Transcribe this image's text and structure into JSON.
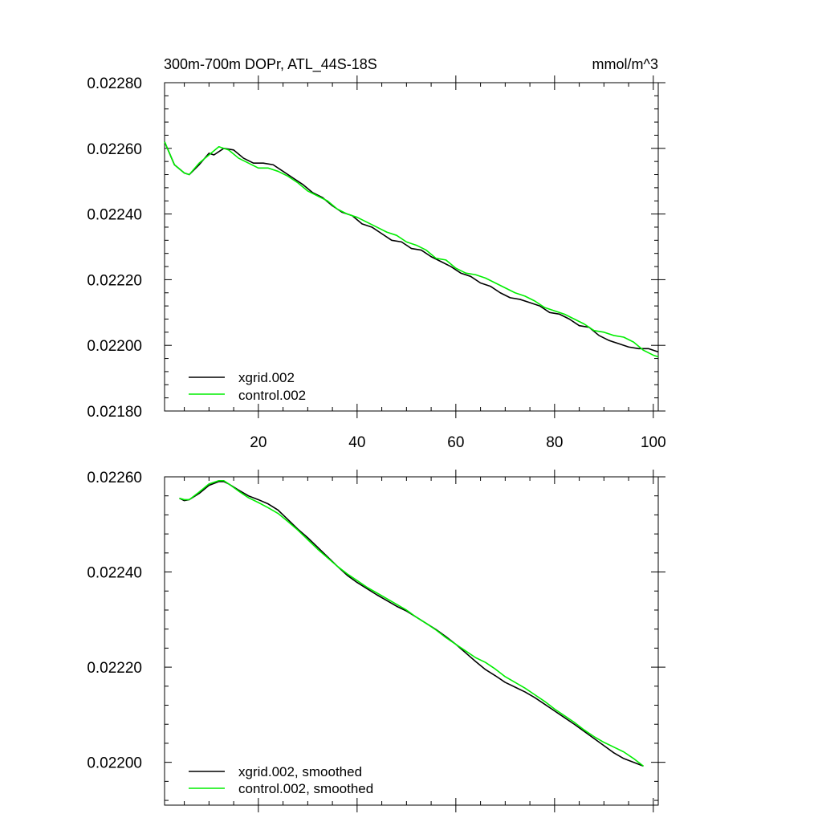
{
  "chart_data": [
    {
      "type": "line",
      "title": "300m-700m DOPr, ATL_44S-18S",
      "units": "mmol/m^3",
      "xlabel": "",
      "ylabel": "",
      "xlim": [
        1,
        101
      ],
      "ylim": [
        0.0218,
        0.0228
      ],
      "x_ticks": [
        20,
        40,
        60,
        80,
        100
      ],
      "y_ticks": [
        0.0218,
        0.022,
        0.0222,
        0.0224,
        0.0226,
        0.0228
      ],
      "y_tick_labels": [
        "0.02180",
        "0.02200",
        "0.02220",
        "0.02240",
        "0.02260",
        "0.02280"
      ],
      "grid": false,
      "legend_position": "bottom-left",
      "series": [
        {
          "name": "xgrid.002",
          "color": "#000000",
          "x": [
            1,
            3,
            5,
            6,
            8,
            10,
            11,
            13,
            15,
            17,
            19,
            21,
            23,
            25,
            27,
            29,
            31,
            33,
            35,
            37,
            39,
            41,
            43,
            45,
            47,
            49,
            51,
            53,
            55,
            57,
            59,
            61,
            63,
            65,
            67,
            69,
            71,
            73,
            75,
            77,
            79,
            81,
            83,
            85,
            87,
            89,
            91,
            93,
            95,
            97,
            99,
            101
          ],
          "values": [
            0.02262,
            0.02255,
            0.022525,
            0.02252,
            0.02255,
            0.022585,
            0.02258,
            0.0226,
            0.022595,
            0.02257,
            0.022555,
            0.022555,
            0.02255,
            0.02253,
            0.02251,
            0.02249,
            0.022465,
            0.02245,
            0.022425,
            0.022405,
            0.022395,
            0.02237,
            0.02236,
            0.02234,
            0.02232,
            0.022315,
            0.022295,
            0.02229,
            0.02227,
            0.022255,
            0.02224,
            0.02222,
            0.02221,
            0.02219,
            0.02218,
            0.02216,
            0.022145,
            0.02214,
            0.02213,
            0.02212,
            0.0221,
            0.022095,
            0.02208,
            0.02206,
            0.022055,
            0.02203,
            0.022015,
            0.022005,
            0.021995,
            0.02199,
            0.02199,
            0.02198
          ]
        },
        {
          "name": "control.002",
          "color": "#00ee00",
          "x": [
            1,
            3,
            5,
            6,
            8,
            10,
            12,
            14,
            16,
            18,
            20,
            22,
            24,
            26,
            28,
            30,
            32,
            34,
            36,
            38,
            40,
            42,
            44,
            46,
            48,
            50,
            52,
            54,
            56,
            58,
            60,
            62,
            64,
            66,
            68,
            70,
            72,
            74,
            76,
            78,
            80,
            82,
            84,
            86,
            88,
            90,
            92,
            94,
            96,
            98,
            100,
            101
          ],
          "values": [
            0.02262,
            0.02255,
            0.022525,
            0.02252,
            0.022555,
            0.02258,
            0.022605,
            0.022595,
            0.02257,
            0.022555,
            0.02254,
            0.02254,
            0.02253,
            0.022515,
            0.022495,
            0.02247,
            0.022455,
            0.02244,
            0.022415,
            0.0224,
            0.02239,
            0.022375,
            0.02236,
            0.022345,
            0.022335,
            0.022315,
            0.022305,
            0.02229,
            0.022265,
            0.02226,
            0.022235,
            0.02222,
            0.022215,
            0.022205,
            0.02219,
            0.022175,
            0.02216,
            0.02215,
            0.022135,
            0.022115,
            0.022105,
            0.022095,
            0.02208,
            0.022065,
            0.022045,
            0.02204,
            0.02203,
            0.022025,
            0.02201,
            0.021985,
            0.02197,
            0.021965
          ]
        }
      ],
      "legend": [
        {
          "label": "xgrid.002",
          "color": "#000000"
        },
        {
          "label": "control.002",
          "color": "#00ee00"
        }
      ]
    },
    {
      "type": "line",
      "title": "",
      "xlabel": "",
      "ylabel": "",
      "xlim": [
        1,
        101
      ],
      "ylim": [
        0.02191,
        0.0226
      ],
      "x_ticks": [
        20,
        40,
        60,
        80,
        100
      ],
      "y_ticks": [
        0.022,
        0.0222,
        0.0224,
        0.0226
      ],
      "y_tick_labels": [
        "0.02200",
        "0.02220",
        "0.02240",
        "0.02260"
      ],
      "grid": false,
      "legend_position": "bottom-left",
      "series": [
        {
          "name": "xgrid.002, smoothed",
          "color": "#000000",
          "x": [
            4,
            5,
            6,
            8,
            10,
            12,
            13,
            14,
            16,
            18,
            20,
            22,
            24,
            26,
            28,
            30,
            32,
            34,
            36,
            38,
            40,
            42,
            44,
            46,
            48,
            50,
            52,
            54,
            56,
            58,
            60,
            62,
            64,
            66,
            68,
            70,
            72,
            74,
            76,
            78,
            80,
            82,
            84,
            86,
            88,
            90,
            92,
            94,
            96,
            98
          ],
          "values": [
            0.022555,
            0.02255,
            0.022552,
            0.022565,
            0.022582,
            0.02259,
            0.02259,
            0.022585,
            0.022572,
            0.02256,
            0.022552,
            0.022543,
            0.02253,
            0.02251,
            0.02249,
            0.022472,
            0.022452,
            0.022432,
            0.022412,
            0.022393,
            0.022378,
            0.022365,
            0.022352,
            0.02234,
            0.022328,
            0.022318,
            0.022305,
            0.022292,
            0.022279,
            0.022264,
            0.022248,
            0.02223,
            0.022212,
            0.022195,
            0.022182,
            0.022168,
            0.022158,
            0.022148,
            0.022136,
            0.022122,
            0.022108,
            0.022094,
            0.02208,
            0.022065,
            0.02205,
            0.022035,
            0.02202,
            0.022008,
            0.022,
            0.021992
          ]
        },
        {
          "name": "control.002, smoothed",
          "color": "#00ee00",
          "x": [
            4,
            5,
            6,
            8,
            10,
            12,
            13,
            14,
            16,
            18,
            20,
            22,
            24,
            26,
            28,
            30,
            32,
            34,
            36,
            38,
            40,
            42,
            44,
            46,
            48,
            50,
            52,
            54,
            56,
            58,
            60,
            62,
            64,
            66,
            68,
            70,
            72,
            74,
            76,
            78,
            80,
            82,
            84,
            86,
            88,
            90,
            92,
            94,
            96,
            98
          ],
          "values": [
            0.022555,
            0.022552,
            0.022552,
            0.022568,
            0.022585,
            0.022592,
            0.022592,
            0.022585,
            0.02257,
            0.022556,
            0.022546,
            0.022535,
            0.022523,
            0.022506,
            0.022488,
            0.022468,
            0.022448,
            0.02243,
            0.022412,
            0.022396,
            0.022382,
            0.022368,
            0.022356,
            0.022344,
            0.022332,
            0.02232,
            0.022305,
            0.022292,
            0.022278,
            0.022262,
            0.022248,
            0.022234,
            0.02222,
            0.02221,
            0.022196,
            0.02218,
            0.022168,
            0.022156,
            0.022142,
            0.022128,
            0.022112,
            0.022098,
            0.022084,
            0.022068,
            0.022054,
            0.022042,
            0.022032,
            0.022022,
            0.022008,
            0.021992
          ]
        }
      ],
      "legend": [
        {
          "label": "xgrid.002, smoothed",
          "color": "#000000"
        },
        {
          "label": "control.002, smoothed",
          "color": "#00ee00"
        }
      ]
    }
  ]
}
